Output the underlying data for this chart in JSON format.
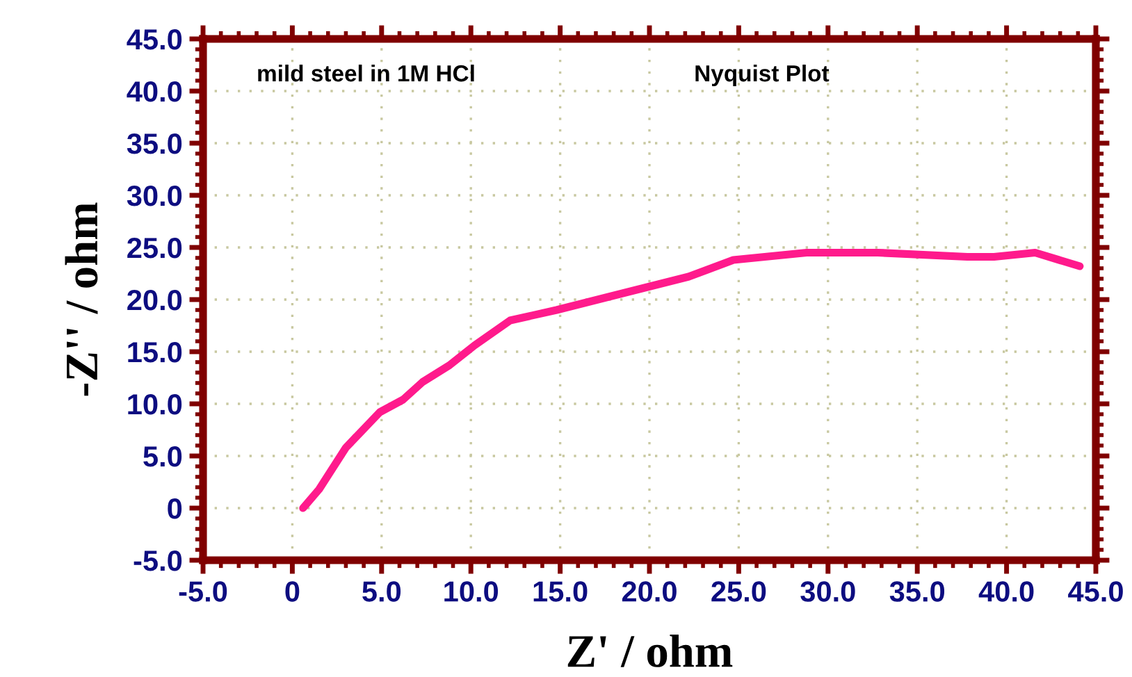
{
  "chart_data": {
    "type": "line",
    "xlabel": "Z' / ohm",
    "ylabel": "-Z'' / ohm",
    "annotations": [
      {
        "text": "mild steel in 1M HCl"
      },
      {
        "text": "Nyquist Plot"
      }
    ],
    "series": [
      {
        "color": "#ff1a8c",
        "x": [
          0.6,
          1.5,
          3.0,
          4.9,
          6.2,
          7.3,
          8.8,
          10.2,
          12.2,
          14.8,
          17.8,
          22.2,
          24.7,
          28.8,
          32.8,
          37.8,
          39.3,
          41.6,
          44.1
        ],
        "values": [
          0.0,
          1.8,
          5.8,
          9.2,
          10.4,
          12.1,
          13.7,
          15.6,
          18.0,
          19.0,
          20.3,
          22.2,
          23.8,
          24.5,
          24.5,
          24.1,
          24.1,
          24.5,
          23.2
        ]
      }
    ],
    "xlim": [
      -5,
      45
    ],
    "ylim": [
      -5,
      45
    ],
    "xticks": [
      {
        "value": -5,
        "label": "-5.0"
      },
      {
        "value": 0,
        "label": "0"
      },
      {
        "value": 5,
        "label": "5.0"
      },
      {
        "value": 10,
        "label": "10.0"
      },
      {
        "value": 15,
        "label": "15.0"
      },
      {
        "value": 20,
        "label": "20.0"
      },
      {
        "value": 25,
        "label": "25.0"
      },
      {
        "value": 30,
        "label": "30.0"
      },
      {
        "value": 35,
        "label": "35.0"
      },
      {
        "value": 40,
        "label": "40.0"
      },
      {
        "value": 45,
        "label": "45.0"
      }
    ],
    "yticks": [
      {
        "value": -5,
        "label": "-5.0"
      },
      {
        "value": 0,
        "label": "0"
      },
      {
        "value": 5,
        "label": "5.0"
      },
      {
        "value": 10,
        "label": "10.0"
      },
      {
        "value": 15,
        "label": "15.0"
      },
      {
        "value": 20,
        "label": "20.0"
      },
      {
        "value": 25,
        "label": "25.0"
      },
      {
        "value": 30,
        "label": "30.0"
      },
      {
        "value": 35,
        "label": "35.0"
      },
      {
        "value": 40,
        "label": "40.0"
      },
      {
        "value": 45,
        "label": "45.0"
      }
    ],
    "grid": true,
    "marker": "none",
    "line_style": "solid"
  }
}
